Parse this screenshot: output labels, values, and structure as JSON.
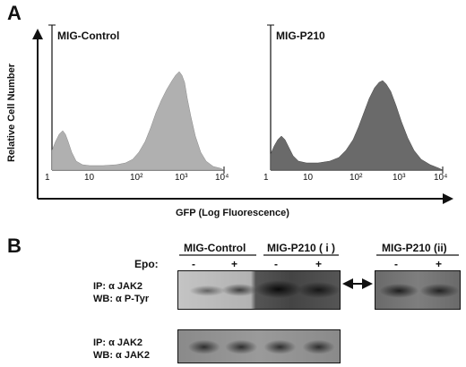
{
  "panel_a": {
    "letter": "A",
    "y_label": "Relative Cell Number",
    "x_label": "GFP (Log Fluorescence)",
    "tick_labels": [
      "1",
      "10",
      "10²",
      "10³",
      "10⁴"
    ],
    "histograms": [
      {
        "title": "MIG-Control",
        "color": "#b0b0b0"
      },
      {
        "title": "MIG-P210",
        "color": "#6a6a6a"
      }
    ]
  },
  "panel_b": {
    "letter": "B",
    "groups": [
      {
        "label": "MIG-Control"
      },
      {
        "label": "MIG-P210 ( i )"
      },
      {
        "label": "MIG-P210 (ii)"
      }
    ],
    "epo_label": "Epo:",
    "lane_signs": [
      "-",
      "+",
      "-",
      "+",
      "-",
      "+"
    ],
    "blot1_label_line1": "IP: α JAK2",
    "blot1_label_line2": "WB: α P-Tyr",
    "blot2_label_line1": "IP: α JAK2",
    "blot2_label_line2": "WB: α JAK2",
    "arrow_symbol": "↔"
  }
}
